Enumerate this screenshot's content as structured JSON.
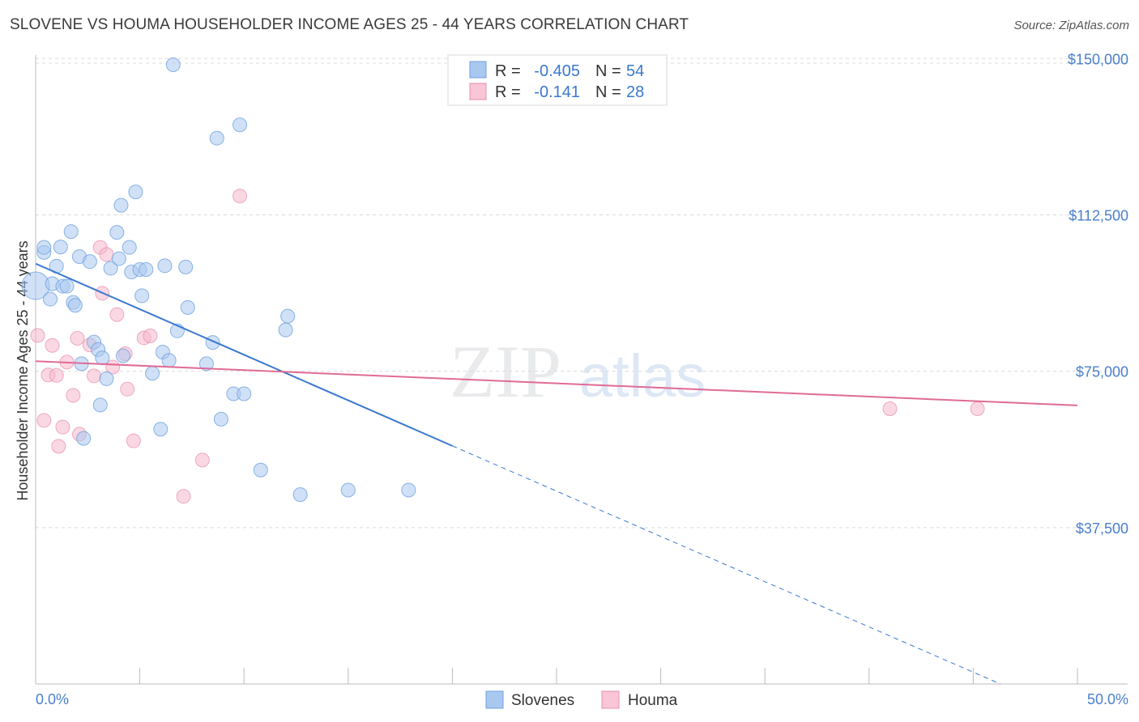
{
  "header": {
    "title": "SLOVENE VS HOUMA HOUSEHOLDER INCOME AGES 25 - 44 YEARS CORRELATION CHART",
    "source": "Source: ZipAtlas.com"
  },
  "watermark": {
    "zip": "ZIP",
    "atlas": "atlas"
  },
  "legend_box": {
    "rows": [
      {
        "r_label": "R =",
        "r_value": "-0.405",
        "n_label": "N =",
        "n_value": "54"
      },
      {
        "r_label": "R =",
        "r_value": "-0.141",
        "n_label": "N =",
        "n_value": "28"
      }
    ]
  },
  "chart_data": {
    "type": "scatter",
    "title": "SLOVENE VS HOUMA HOUSEHOLDER INCOME AGES 25 - 44 YEARS CORRELATION CHART",
    "xlabel": "",
    "ylabel": "Householder Income Ages 25 - 44 years",
    "xlim": [
      0,
      50
    ],
    "ylim": [
      0,
      152000
    ],
    "x_tick_labels": [
      "0.0%",
      "50.0%"
    ],
    "y_ticks": [
      37500,
      75000,
      112500,
      150000
    ],
    "y_tick_labels": [
      "$37,500",
      "$75,000",
      "$112,500",
      "$150,000"
    ],
    "grid": "horizontal dashed",
    "legend_position": "bottom",
    "colors": {
      "Slovenes": "#a9c8f0",
      "Slovenes_line": "#3a78d0",
      "Houma": "#f5b8cc",
      "Houma_line": "#e06b95"
    },
    "series": [
      {
        "name": "Slovenes",
        "r": -0.405,
        "n": 54,
        "trend": {
          "x0": 0,
          "y0": 100800,
          "x1": 20,
          "y1": 57100,
          "dashed_to_x": 46.3,
          "dashed_to_y": 0
        },
        "points": [
          [
            0,
            95500
          ],
          [
            0.4,
            103500
          ],
          [
            0.4,
            104700
          ],
          [
            0.7,
            92300
          ],
          [
            0.8,
            96000
          ],
          [
            1.0,
            100200
          ],
          [
            1.2,
            104800
          ],
          [
            1.3,
            95400
          ],
          [
            1.5,
            95400
          ],
          [
            1.7,
            108500
          ],
          [
            1.8,
            91500
          ],
          [
            1.9,
            90800
          ],
          [
            2.1,
            102500
          ],
          [
            2.2,
            76800
          ],
          [
            2.3,
            58900
          ],
          [
            2.6,
            101300
          ],
          [
            2.8,
            82000
          ],
          [
            3.0,
            80200
          ],
          [
            3.1,
            66900
          ],
          [
            3.2,
            78200
          ],
          [
            3.4,
            73200
          ],
          [
            3.6,
            99700
          ],
          [
            3.9,
            108300
          ],
          [
            4.0,
            102000
          ],
          [
            4.1,
            114800
          ],
          [
            4.2,
            78700
          ],
          [
            4.5,
            104700
          ],
          [
            4.6,
            98800
          ],
          [
            4.8,
            118000
          ],
          [
            5.0,
            99400
          ],
          [
            5.1,
            93100
          ],
          [
            5.3,
            99400
          ],
          [
            5.6,
            74500
          ],
          [
            6.0,
            61100
          ],
          [
            6.1,
            79600
          ],
          [
            6.2,
            100300
          ],
          [
            6.4,
            77600
          ],
          [
            6.6,
            148500
          ],
          [
            6.8,
            84700
          ],
          [
            7.2,
            100000
          ],
          [
            7.3,
            90300
          ],
          [
            8.2,
            76800
          ],
          [
            8.5,
            81900
          ],
          [
            8.7,
            130900
          ],
          [
            8.9,
            63500
          ],
          [
            9.5,
            69600
          ],
          [
            9.8,
            134100
          ],
          [
            10.0,
            69600
          ],
          [
            10.8,
            51300
          ],
          [
            12.0,
            84900
          ],
          [
            12.1,
            88200
          ],
          [
            12.7,
            45400
          ],
          [
            15.0,
            46500
          ],
          [
            17.9,
            46500
          ]
        ]
      },
      {
        "name": "Houma",
        "r": -0.141,
        "n": 28,
        "trend": {
          "x0": 0,
          "y0": 77400,
          "x1": 50,
          "y1": 66800
        },
        "points": [
          [
            0.1,
            83600
          ],
          [
            0.4,
            63200
          ],
          [
            0.6,
            74100
          ],
          [
            0.8,
            81200
          ],
          [
            1.0,
            74000
          ],
          [
            1.1,
            57000
          ],
          [
            1.3,
            61600
          ],
          [
            1.5,
            77200
          ],
          [
            1.8,
            69200
          ],
          [
            2.0,
            82900
          ],
          [
            2.1,
            59900
          ],
          [
            2.6,
            81300
          ],
          [
            2.8,
            73900
          ],
          [
            3.1,
            104700
          ],
          [
            3.2,
            93700
          ],
          [
            3.4,
            103000
          ],
          [
            3.7,
            76000
          ],
          [
            3.9,
            88600
          ],
          [
            4.3,
            79200
          ],
          [
            4.4,
            70700
          ],
          [
            4.7,
            58300
          ],
          [
            5.2,
            83000
          ],
          [
            5.5,
            83500
          ],
          [
            7.1,
            45000
          ],
          [
            8.0,
            53700
          ],
          [
            9.8,
            117000
          ],
          [
            41.0,
            66000
          ],
          [
            45.2,
            66000
          ]
        ]
      }
    ]
  },
  "bottom_legend": {
    "items": [
      "Slovenes",
      "Houma"
    ]
  }
}
